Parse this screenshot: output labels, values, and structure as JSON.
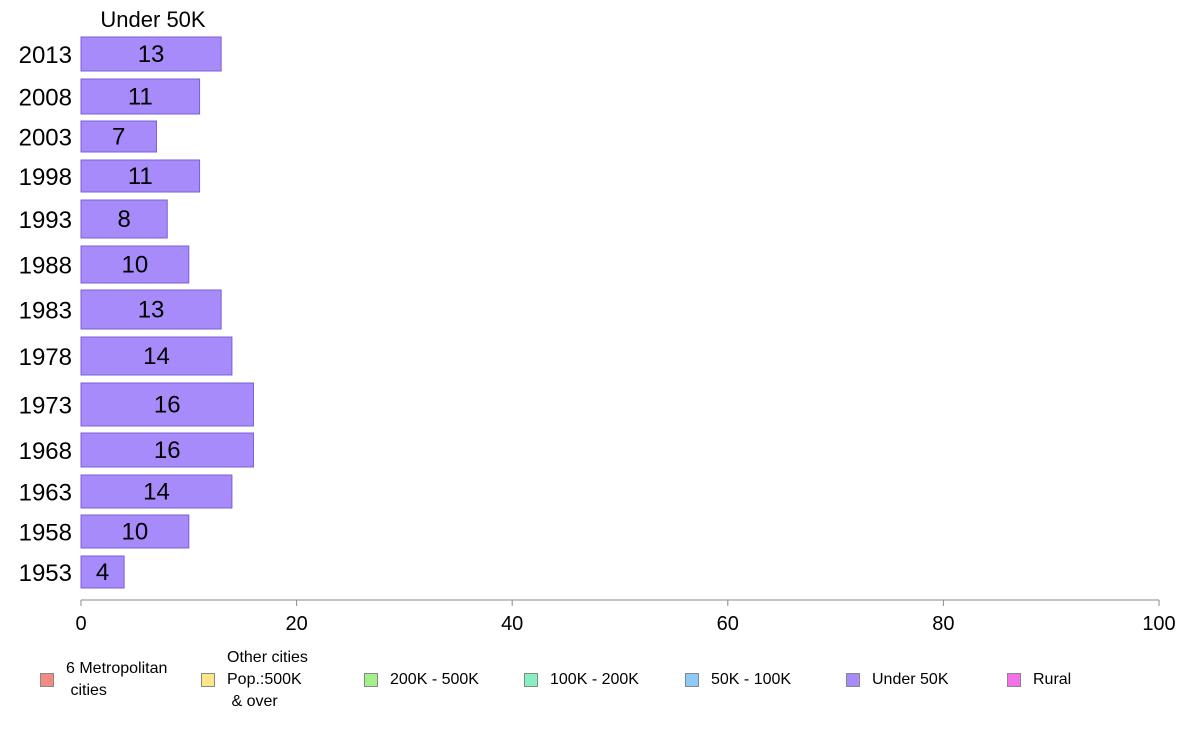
{
  "chart_data": {
    "type": "bar",
    "orientation": "horizontal",
    "title": "Under 50K",
    "categories": [
      "2013",
      "2008",
      "2003",
      "1998",
      "1993",
      "1988",
      "1983",
      "1978",
      "1973",
      "1968",
      "1963",
      "1958",
      "1953"
    ],
    "series": [
      {
        "name": "Under 50K",
        "color": "#a78bfa",
        "values": [
          13,
          11,
          7,
          11,
          8,
          10,
          13,
          14,
          16,
          16,
          14,
          10,
          4
        ]
      }
    ],
    "xlim": [
      0,
      100
    ],
    "x_ticks": [
      0,
      20,
      40,
      60,
      80,
      100
    ],
    "grid": false,
    "legend_position": "bottom"
  },
  "legend": [
    {
      "label": "6 Metropolitan\n cities",
      "color": "#f28b82"
    },
    {
      "label": "Other cities\nPop.:500K\n & over",
      "color": "#fde68a"
    },
    {
      "label": "200K - 500K",
      "color": "#a3f08a"
    },
    {
      "label": "100K - 200K",
      "color": "#86efc4"
    },
    {
      "label": "50K - 100K",
      "color": "#8ec9f8"
    },
    {
      "label": "Under 50K",
      "color": "#a78bfa"
    },
    {
      "label": "Rural",
      "color": "#f472e8"
    }
  ]
}
